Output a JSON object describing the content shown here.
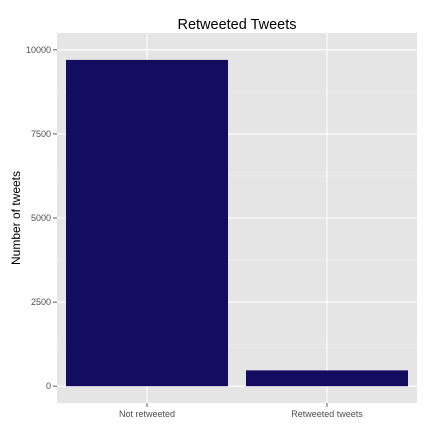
{
  "chart_data": {
    "type": "bar",
    "title": "Retweeted Tweets",
    "xlabel": "",
    "ylabel": "Number of tweets",
    "categories": [
      "Not retweeted",
      "Retweeted tweets"
    ],
    "values": [
      9700,
      470
    ],
    "ylim": [
      -500,
      10500
    ],
    "yticks": [
      0,
      2500,
      5000,
      7500,
      10000
    ],
    "grid": true,
    "legend": "none",
    "colors": {
      "bar": "#140d5f",
      "panel": "#e5e5e5",
      "grid_major": "#ffffff",
      "grid_minor": "#f2f2f2",
      "tick_text": "#4d4d4d"
    }
  }
}
